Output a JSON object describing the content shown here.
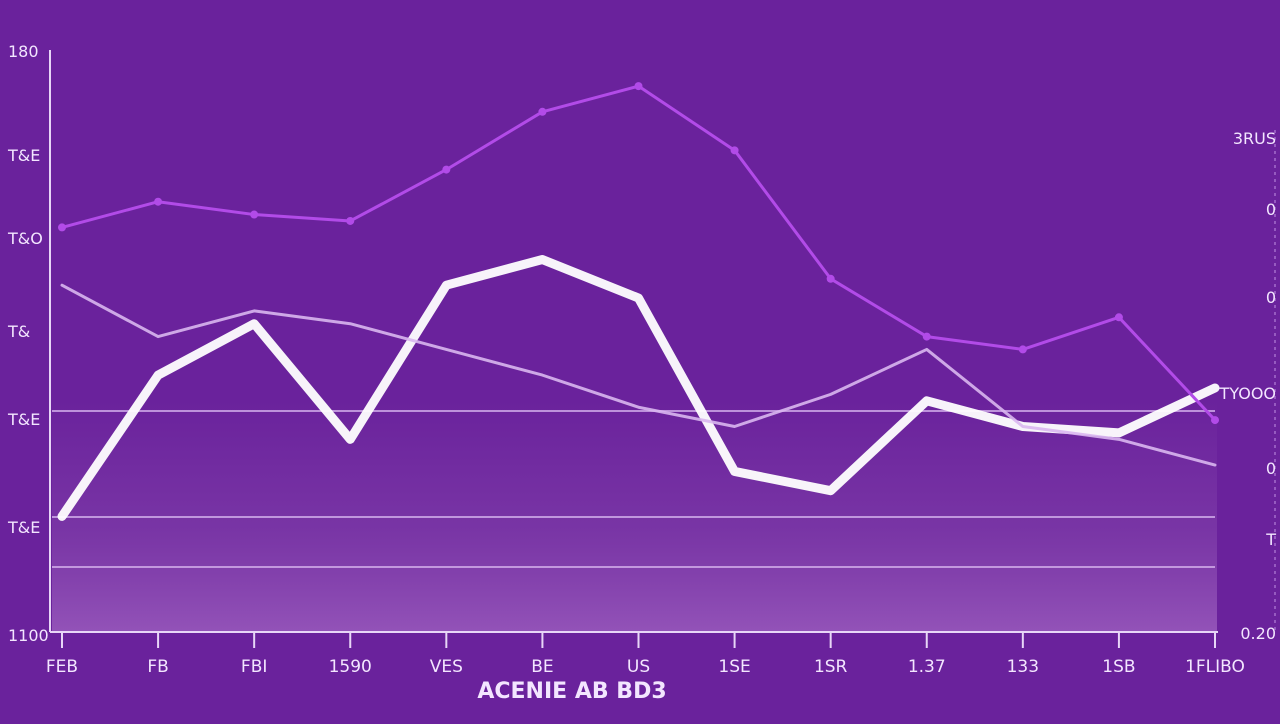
{
  "colors": {
    "background": "#6a229c",
    "plot_fill": "#8a4bb0",
    "series_primary": "#ffffff",
    "series_secondary": "#b24be8",
    "series_tertiary": "#d9b7f0",
    "text": "#f3e6ff"
  },
  "chart_data": {
    "type": "line",
    "title": "",
    "xlabel": "ACENIE AB BD3",
    "ylabel": "",
    "y_left_ticks": [
      "1100",
      "T&E",
      "T&E",
      "T&",
      "T&O",
      "T&E",
      "180"
    ],
    "y_right_ticks": [
      "3RUS",
      "0",
      "0",
      "TYOOO",
      "0",
      "T",
      "0.20"
    ],
    "categories": [
      "FEB",
      "FB",
      "FBI",
      "1590",
      "VES",
      "BE",
      "US",
      "1SE",
      "1SR",
      "1.37",
      "133",
      "1SB",
      "1FLIBO"
    ],
    "ylim": [
      100,
      190
    ],
    "grid": true,
    "legend": "none",
    "series": [
      {
        "values": [
          118,
          140,
          148,
          130,
          154,
          158,
          152,
          125,
          122,
          136,
          132,
          131,
          138
        ]
      },
      {
        "values": [
          163,
          167,
          165,
          164,
          172,
          181,
          185,
          175,
          155,
          146,
          144,
          149,
          133
        ]
      },
      {
        "values": [
          154,
          146,
          150,
          148,
          144,
          140,
          135,
          132,
          137,
          144,
          132,
          130,
          126
        ]
      }
    ]
  }
}
